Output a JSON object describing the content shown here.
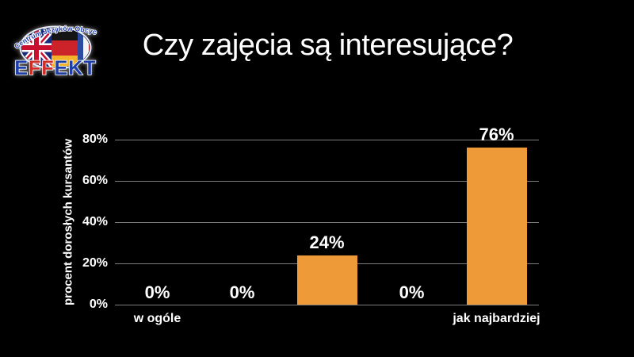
{
  "logo": {
    "arc_text": "Centrum Języków Obcych",
    "brand": "EFFEKT",
    "brand_letters": [
      {
        "ch": "E",
        "color": "#1e3fa8"
      },
      {
        "ch": "F",
        "color": "#cf2e28"
      },
      {
        "ch": "F",
        "color": "#cf2e28"
      },
      {
        "ch": "E",
        "color": "#1e3fa8"
      },
      {
        "ch": "K",
        "color": "#1e3fa8"
      },
      {
        "ch": "T",
        "color": "#1e3fa8"
      }
    ]
  },
  "title": "Czy zajęcia są interesujące?",
  "chart_data": {
    "type": "bar",
    "title": "Czy zajęcia są interesujące?",
    "categories": [
      "w ogóle",
      "",
      "",
      "",
      "jak najbardziej"
    ],
    "values": [
      0,
      0,
      24,
      0,
      76
    ],
    "value_labels": [
      "0%",
      "0%",
      "24%",
      "0%",
      "76%"
    ],
    "ylabel": "procent dorosłych kursantów",
    "xlabel": "",
    "yticks": [
      0,
      20,
      40,
      60,
      80
    ],
    "ytick_labels": [
      "0%",
      "20%",
      "40%",
      "60%",
      "80%"
    ],
    "ylim": [
      0,
      80
    ],
    "grid": true,
    "legend": false,
    "bar_color": "#EE9A39",
    "background_color": "#000000",
    "text_color": "#FFFFFF",
    "gridline_color": "#7D7D7D"
  }
}
